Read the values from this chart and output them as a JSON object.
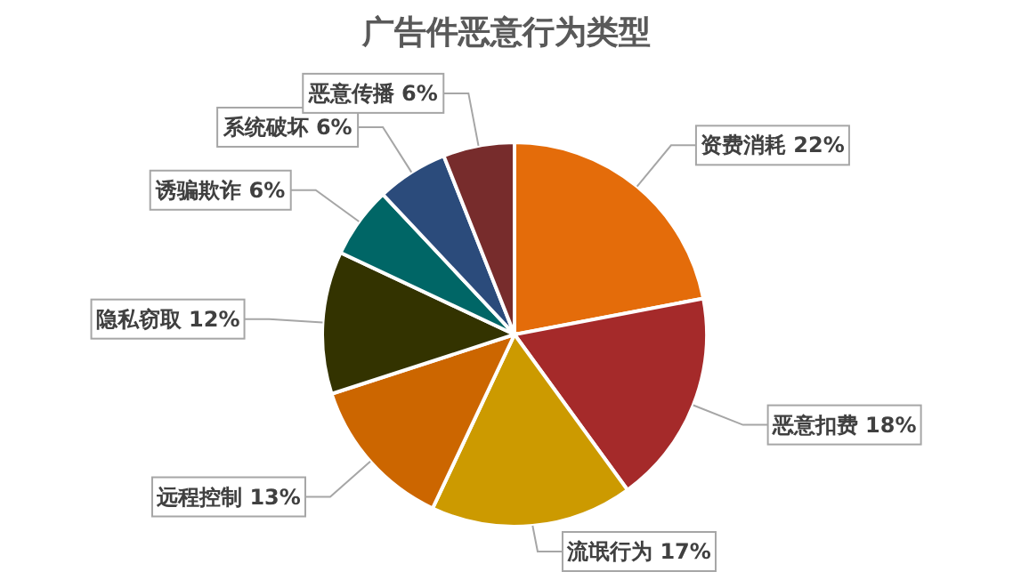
{
  "chart_data": {
    "type": "pie",
    "title": "广告件恶意行为类型",
    "categories": [
      "资费消耗",
      "恶意扣费",
      "流氓行为",
      "远程控制",
      "隐私窃取",
      "诱骗欺诈",
      "系统破坏",
      "恶意传播"
    ],
    "values": [
      22,
      18,
      17,
      13,
      12,
      6,
      6,
      6
    ],
    "value_labels": [
      "22%",
      "18%",
      "17%",
      "13%",
      "12%",
      "6%",
      "6%",
      "6%"
    ],
    "colors": [
      "#e46c0a",
      "#a52a2a",
      "#cc9a00",
      "#cc6600",
      "#333300",
      "#006666",
      "#2b4b7b",
      "#772c2c"
    ],
    "legend": false
  }
}
